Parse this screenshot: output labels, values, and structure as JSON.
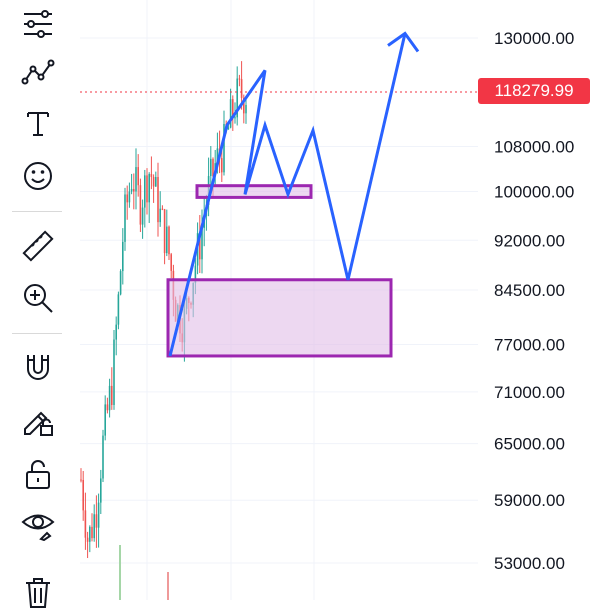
{
  "toolbar": {
    "tools": [
      {
        "name": "trendline-tools-icon",
        "label": "Lines"
      },
      {
        "name": "pattern-tools-icon",
        "label": "Patterns"
      },
      {
        "name": "text-tool-icon",
        "label": "Text"
      },
      {
        "name": "emoji-tool-icon",
        "label": "Icons"
      },
      {
        "name": "ruler-tool-icon",
        "label": "Measure"
      },
      {
        "name": "zoom-in-tool-icon",
        "label": "Zoom In"
      },
      {
        "name": "magnet-tool-icon",
        "label": "Magnet"
      },
      {
        "name": "lock-drawing-tool-icon",
        "label": "Stay in drawing mode"
      },
      {
        "name": "lock-all-icon",
        "label": "Lock all drawings"
      },
      {
        "name": "hide-drawings-icon",
        "label": "Hide all drawings"
      },
      {
        "name": "delete-drawings-icon",
        "label": "Remove drawings"
      }
    ]
  },
  "price_axis": {
    "labels": [
      "130000.00",
      "108000.00",
      "100000.00",
      "92000.00",
      "84500.00",
      "77000.00",
      "71000.00",
      "65000.00",
      "59000.00",
      "53000.00"
    ],
    "current_price": "118279.99"
  },
  "colors": {
    "up": "#26a69a",
    "down": "#ef5350",
    "current_price": "#f23645",
    "projection": "#2962ff",
    "zone_border": "#9c27b0",
    "zone_fill": "#e1bee7"
  },
  "chart_data": {
    "type": "candlestick",
    "y_scale": "log",
    "y_ticks": [
      130000,
      108000,
      100000,
      92000,
      84500,
      77000,
      71000,
      65000,
      59000,
      53000
    ],
    "current_price": 118279.99,
    "zones": [
      {
        "low": 99000,
        "high": 101000
      },
      {
        "low": 75500,
        "high": 86000
      }
    ],
    "projection_path_prices": [
      75500,
      112000,
      123000,
      99500,
      112000,
      99500,
      111000,
      86000,
      131000
    ]
  }
}
